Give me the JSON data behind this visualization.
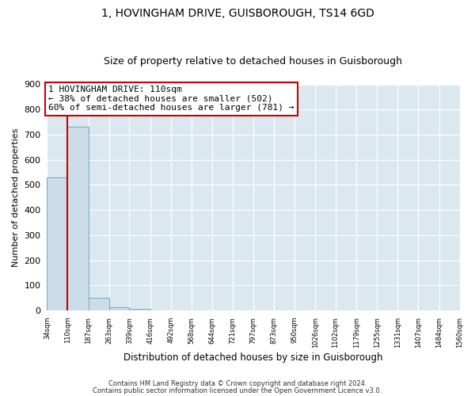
{
  "title": "1, HOVINGHAM DRIVE, GUISBOROUGH, TS14 6GD",
  "subtitle": "Size of property relative to detached houses in Guisborough",
  "xlabel": "Distribution of detached houses by size in Guisborough",
  "ylabel": "Number of detached properties",
  "bin_edges": [
    34,
    110,
    187,
    263,
    339,
    416,
    492,
    568,
    644,
    721,
    797,
    873,
    950,
    1026,
    1102,
    1179,
    1255,
    1331,
    1407,
    1484,
    1560
  ],
  "bar_heights": [
    530,
    730,
    50,
    12,
    7,
    0,
    0,
    0,
    0,
    0,
    0,
    0,
    0,
    0,
    0,
    0,
    0,
    0,
    0,
    0
  ],
  "bar_color": "#ccdce8",
  "bar_edge_color": "#6aaacf",
  "plot_bg_color": "#dce8f0",
  "fig_bg_color": "#ffffff",
  "grid_color": "#ffffff",
  "red_line_color": "#cc0000",
  "red_line_x": 110,
  "ann_line1": "1 HOVINGHAM DRIVE: 110sqm",
  "ann_line2": "← 38% of detached houses are smaller (502)",
  "ann_line3": "60% of semi-detached houses are larger (781) →",
  "annotation_box_facecolor": "#ffffff",
  "annotation_box_edgecolor": "#cc0000",
  "ylim_max": 900,
  "yticks": [
    0,
    100,
    200,
    300,
    400,
    500,
    600,
    700,
    800,
    900
  ],
  "title_fontsize": 10,
  "subtitle_fontsize": 9,
  "footer1": "Contains HM Land Registry data © Crown copyright and database right 2024.",
  "footer2": "Contains public sector information licensed under the Open Government Licence v3.0."
}
